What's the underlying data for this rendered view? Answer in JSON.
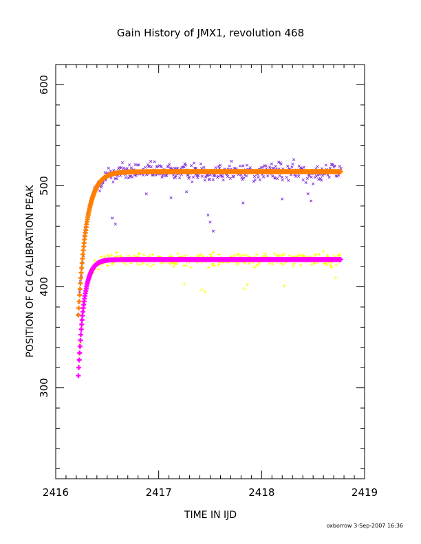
{
  "chart_data": {
    "type": "scatter",
    "title": "Gain History of JMX1, revolution 468",
    "xlabel": "TIME IN IJD",
    "ylabel": "POSITION OF Cd CALIBRATION PEAK",
    "xlim": [
      2416,
      2419
    ],
    "ylim": [
      210,
      620
    ],
    "x_ticks": [
      2416,
      2417,
      2418,
      2419
    ],
    "y_ticks": [
      300,
      400,
      500,
      600
    ],
    "grid": false,
    "legend": "none",
    "x_start": 2416.22,
    "x_end": 2418.77,
    "series": [
      {
        "marker": "x",
        "color": "#7f2fd8",
        "role": "measured peak, upper line",
        "asymptote": 514,
        "start_value": 372,
        "time_constant": 0.08,
        "scatter": 9,
        "outliers": [
          [
            2416.55,
            468
          ],
          [
            2416.58,
            462
          ],
          [
            2416.88,
            492
          ],
          [
            2417.12,
            488
          ],
          [
            2417.27,
            494
          ],
          [
            2417.48,
            471
          ],
          [
            2417.5,
            464
          ],
          [
            2417.53,
            455
          ],
          [
            2417.82,
            483
          ],
          [
            2418.2,
            487
          ],
          [
            2418.45,
            492
          ],
          [
            2418.48,
            485
          ]
        ]
      },
      {
        "marker": "line",
        "color": "#ff7f00",
        "role": "fit, upper line",
        "asymptote": 514,
        "start_value": 372,
        "time_constant": 0.08
      },
      {
        "marker": "+",
        "color": "#ffff00",
        "role": "measured peak, lower line",
        "asymptote": 427,
        "start_value": 322,
        "time_constant": 0.055,
        "scatter": 6,
        "outliers": [
          [
            2417.25,
            403
          ],
          [
            2417.42,
            397
          ],
          [
            2417.45,
            395
          ],
          [
            2417.83,
            398
          ],
          [
            2417.86,
            402
          ],
          [
            2418.22,
            401
          ],
          [
            2418.72,
            409
          ]
        ]
      },
      {
        "marker": "line",
        "color": "#ff00ff",
        "role": "fit, lower line",
        "asymptote": 427,
        "start_value": 312,
        "time_constant": 0.055
      }
    ]
  },
  "footer": {
    "credit": "oxborrow  3-Sep-2007 16:36"
  }
}
